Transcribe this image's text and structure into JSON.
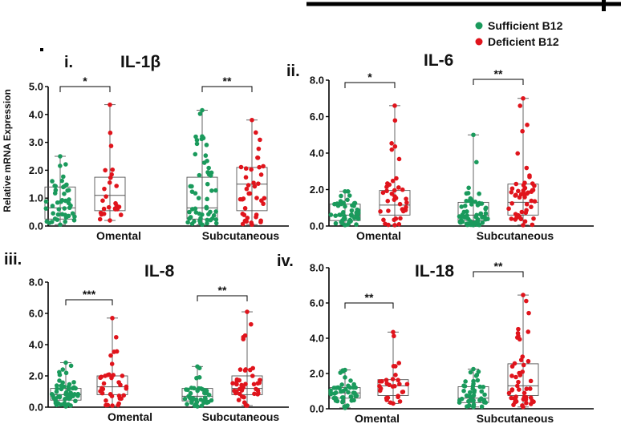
{
  "legend": {
    "items": [
      {
        "label": "Sufficient B12",
        "color": "#1a9a5c"
      },
      {
        "label": "Deficient B12",
        "color": "#e0141c"
      }
    ]
  },
  "y_axis_label": "Relative mRNA Expression",
  "chart_data": [
    {
      "type": "box",
      "panel": "i.",
      "title": "IL-1β",
      "ylim": [
        0,
        5
      ],
      "yticks": [
        "0.0",
        "1.0",
        "2.0",
        "3.0",
        "4.0",
        "5.0"
      ],
      "categories": [
        "Omental",
        "Subcutaneous"
      ],
      "significance": [
        "*",
        "**"
      ],
      "series": [
        {
          "name": "Sufficient B12",
          "boxes": [
            {
              "min": 0.05,
              "q1": 0.25,
              "median": 0.65,
              "q3": 1.4,
              "max": 2.5,
              "n": 45
            },
            {
              "min": 0.05,
              "q1": 0.25,
              "median": 0.65,
              "q3": 1.75,
              "max": 4.15,
              "n": 55
            }
          ]
        },
        {
          "name": "Deficient B12",
          "boxes": [
            {
              "min": 0.2,
              "q1": 0.55,
              "median": 1.1,
              "q3": 1.75,
              "max": 4.35,
              "n": 26
            },
            {
              "min": 0.05,
              "q1": 0.55,
              "median": 1.5,
              "q3": 2.1,
              "max": 3.8,
              "n": 40
            }
          ]
        }
      ]
    },
    {
      "type": "box",
      "panel": "ii.",
      "title": "IL-6",
      "ylim": [
        0,
        8
      ],
      "yticks": [
        "0.0",
        "2.0",
        "4.0",
        "6.0",
        "8.0"
      ],
      "categories": [
        "Omental",
        "Subcutaneous"
      ],
      "significance": [
        "*",
        "**"
      ],
      "series": [
        {
          "name": "Sufficient B12",
          "boxes": [
            {
              "min": 0.05,
              "q1": 0.3,
              "median": 0.6,
              "q3": 1.2,
              "max": 1.9,
              "n": 50
            },
            {
              "min": 0.05,
              "q1": 0.3,
              "median": 0.6,
              "q3": 1.3,
              "max": 5.0,
              "n": 60
            }
          ]
        },
        {
          "name": "Deficient B12",
          "boxes": [
            {
              "min": 0.05,
              "q1": 0.6,
              "median": 1.15,
              "q3": 1.95,
              "max": 6.6,
              "n": 38
            },
            {
              "min": 0.05,
              "q1": 0.6,
              "median": 1.3,
              "q3": 2.3,
              "max": 7.0,
              "n": 50
            }
          ]
        }
      ]
    },
    {
      "type": "box",
      "panel": "iii.",
      "title": "IL-8",
      "ylim": [
        0,
        8
      ],
      "yticks": [
        "0.0",
        "2.0",
        "4.0",
        "6.0",
        "8.0"
      ],
      "categories": [
        "Omental",
        "Subcutaneous"
      ],
      "significance": [
        "***",
        "**"
      ],
      "series": [
        {
          "name": "Sufficient B12",
          "boxes": [
            {
              "min": 0.05,
              "q1": 0.45,
              "median": 0.8,
              "q3": 1.2,
              "max": 2.85,
              "n": 55
            },
            {
              "min": 0.05,
              "q1": 0.4,
              "median": 0.7,
              "q3": 1.2,
              "max": 2.6,
              "n": 45
            }
          ]
        },
        {
          "name": "Deficient B12",
          "boxes": [
            {
              "min": 0.1,
              "q1": 0.8,
              "median": 1.3,
              "q3": 2.0,
              "max": 5.7,
              "n": 36
            },
            {
              "min": 0.1,
              "q1": 0.8,
              "median": 1.2,
              "q3": 2.0,
              "max": 6.1,
              "n": 42
            }
          ]
        }
      ]
    },
    {
      "type": "box",
      "panel": "iv.",
      "title": "IL-18",
      "ylim": [
        0,
        8
      ],
      "yticks": [
        "0.0",
        "2.0",
        "4.0",
        "6.0",
        "8.0"
      ],
      "categories": [
        "Omental",
        "Subcutaneous"
      ],
      "significance": [
        "**",
        "**"
      ],
      "series": [
        {
          "name": "Sufficient B12",
          "boxes": [
            {
              "min": 0.05,
              "q1": 0.6,
              "median": 0.9,
              "q3": 1.2,
              "max": 2.2,
              "n": 45
            },
            {
              "min": 0.1,
              "q1": 0.35,
              "median": 0.6,
              "q3": 1.25,
              "max": 2.25,
              "n": 45
            }
          ]
        },
        {
          "name": "Deficient B12",
          "boxes": [
            {
              "min": 0.3,
              "q1": 0.75,
              "median": 1.3,
              "q3": 1.65,
              "max": 4.35,
              "n": 30
            },
            {
              "min": 0.1,
              "q1": 0.75,
              "median": 1.3,
              "q3": 2.55,
              "max": 6.45,
              "n": 48
            }
          ]
        }
      ]
    }
  ]
}
